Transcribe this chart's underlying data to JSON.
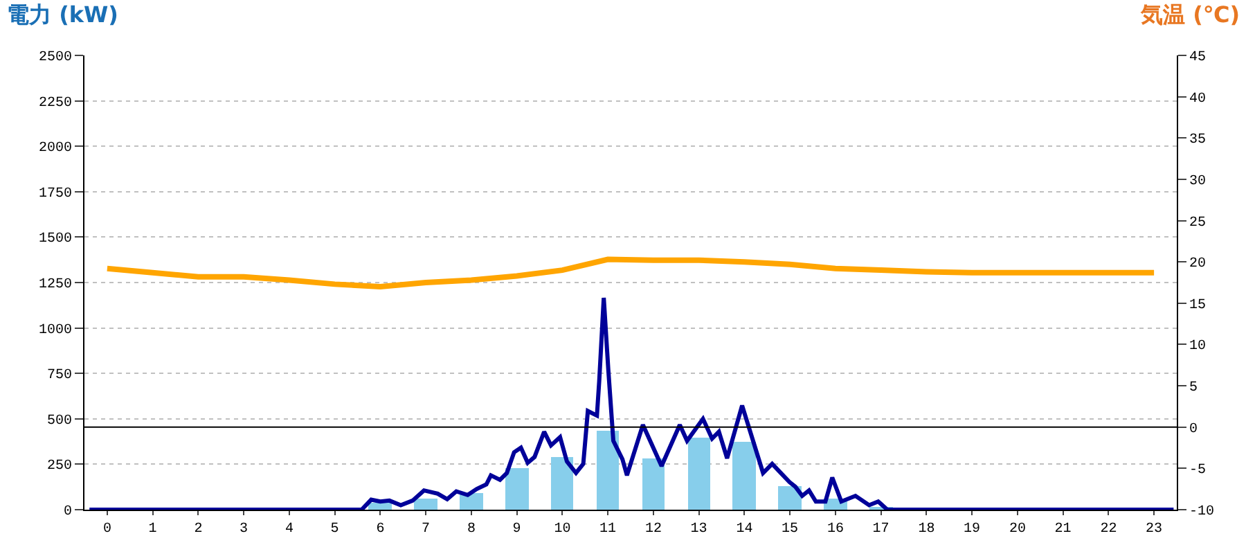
{
  "chart_data": {
    "type": "bar",
    "ylabel": "電力 (kW)",
    "y2label": "気温 (℃)",
    "xlim": [
      -0.5,
      23.5
    ],
    "xticks": [
      0,
      1,
      2,
      3,
      4,
      5,
      6,
      7,
      8,
      9,
      10,
      11,
      12,
      13,
      14,
      15,
      16,
      17,
      18,
      19,
      20,
      21,
      22,
      23
    ],
    "ylim": [
      0,
      2500
    ],
    "yticks": [
      0,
      250,
      500,
      750,
      1000,
      1250,
      1500,
      1750,
      2000,
      2250,
      2500
    ],
    "y2lim": [
      -10,
      45
    ],
    "y2ticks": [
      -10,
      -5,
      0,
      5,
      10,
      15,
      20,
      25,
      30,
      35,
      40,
      45
    ],
    "grid": "y",
    "marker": "none",
    "ref_lines": [
      {
        "axis": "y2",
        "value": 0,
        "color": "#000000"
      }
    ],
    "series": [
      {
        "color": "#87ceeb",
        "x": [
          0,
          1,
          2,
          3,
          4,
          5,
          6,
          7,
          8,
          9,
          10,
          11,
          12,
          13,
          14,
          15,
          16,
          17,
          18,
          19,
          20,
          21,
          22,
          23
        ],
        "values": [
          0,
          0,
          0,
          0,
          0,
          0,
          40,
          63,
          88,
          227,
          290,
          434,
          283,
          396,
          371,
          131,
          63,
          15,
          0,
          0,
          0,
          0,
          0,
          0
        ]
      },
      {
        "type": "line",
        "color": "#000099",
        "x": [
          -0.39,
          5.59,
          5.8,
          6.0,
          6.2,
          6.45,
          6.71,
          6.96,
          7.26,
          7.47,
          7.67,
          7.92,
          8.12,
          8.33,
          8.43,
          8.63,
          8.78,
          8.94,
          9.09,
          9.24,
          9.39,
          9.6,
          9.75,
          9.95,
          10.1,
          10.3,
          10.46,
          10.56,
          10.76,
          10.81,
          10.91,
          11.01,
          11.12,
          11.32,
          11.42,
          11.77,
          12.18,
          12.58,
          12.74,
          13.09,
          13.29,
          13.44,
          13.62,
          13.95,
          14.41,
          14.61,
          14.99,
          15.12,
          15.27,
          15.42,
          15.57,
          15.78,
          15.93,
          16.13,
          16.44,
          16.74,
          16.94,
          17.14,
          23.43
        ],
        "values": [
          0,
          0,
          55,
          45,
          50,
          25,
          50,
          106,
          88,
          58,
          101,
          81,
          114,
          139,
          189,
          164,
          202,
          316,
          341,
          258,
          290,
          429,
          354,
          399,
          265,
          202,
          252,
          543,
          518,
          707,
          1166,
          770,
          379,
          278,
          189,
          467,
          240,
          467,
          379,
          500,
          391,
          429,
          283,
          573,
          202,
          252,
          152,
          126,
          76,
          106,
          45,
          45,
          177,
          45,
          76,
          25,
          45,
          0,
          0
        ]
      },
      {
        "type": "line",
        "axis": "y2",
        "color": "#ffa500",
        "x": [
          0,
          1,
          2,
          3,
          4,
          5,
          6,
          7,
          8,
          9,
          10,
          11,
          12,
          13,
          14,
          15,
          16,
          17,
          18,
          19,
          20,
          21,
          22,
          23
        ],
        "values": [
          19.2,
          18.7,
          18.2,
          18.2,
          17.8,
          17.3,
          17.0,
          17.5,
          17.8,
          18.3,
          19.0,
          20.3,
          20.2,
          20.2,
          20.0,
          19.7,
          19.2,
          19.0,
          18.8,
          18.7,
          18.7,
          18.7,
          18.7,
          18.7
        ]
      }
    ]
  }
}
